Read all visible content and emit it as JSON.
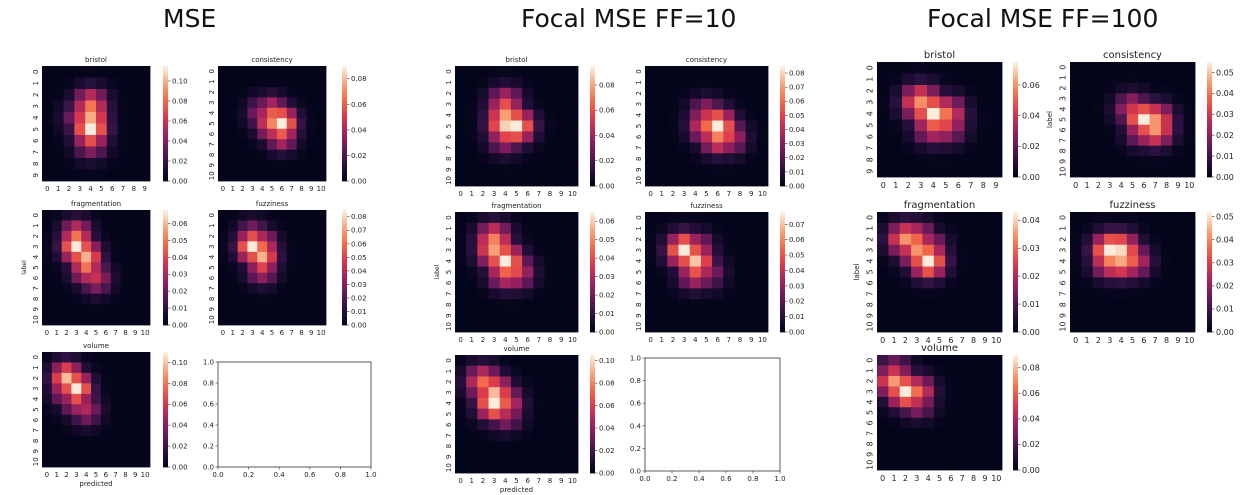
{
  "groups": [
    {
      "title": "MSE"
    },
    {
      "title": "Focal MSE FF=10"
    },
    {
      "title": "Focal MSE FF=100"
    }
  ],
  "axis_labels": {
    "ylabel": "label",
    "xlabel": "predicted"
  },
  "colormap": [
    "#03051a",
    "#2d1242",
    "#6b1a5a",
    "#a3245e",
    "#dc3a4c",
    "#f26b4a",
    "#f6a57a",
    "#faebdd"
  ],
  "chart_data": [
    {
      "type": "heatmap",
      "group": "MSE",
      "title": "bristol",
      "ylabel": "",
      "xlabel": "",
      "x": [
        0,
        1,
        2,
        3,
        4,
        5,
        6,
        7,
        8,
        9
      ],
      "y": [
        0,
        1,
        2,
        3,
        4,
        5,
        6,
        7,
        8,
        9
      ],
      "cbar_ticks": [
        "0.00",
        "0.02",
        "0.04",
        "0.06",
        "0.08",
        "0.10"
      ],
      "vmax": 0.115,
      "peaks": [
        {
          "x": 4,
          "y": 3,
          "v": 0.085
        },
        {
          "x": 4,
          "y": 4,
          "v": 0.1
        },
        {
          "x": 4,
          "y": 5,
          "v": 0.115
        },
        {
          "x": 3,
          "y": 4,
          "v": 0.05
        },
        {
          "x": 4,
          "y": 6,
          "v": 0.06
        }
      ]
    },
    {
      "type": "heatmap",
      "group": "MSE",
      "title": "consistency",
      "ylabel": "",
      "xlabel": "",
      "x": [
        0,
        1,
        2,
        3,
        4,
        5,
        6,
        7,
        8,
        9,
        10
      ],
      "y": [
        0,
        1,
        2,
        3,
        4,
        5,
        6,
        7,
        8,
        9,
        10
      ],
      "cbar_ticks": [
        "0.00",
        "0.02",
        "0.04",
        "0.06",
        "0.08"
      ],
      "vmax": 0.09,
      "peaks": [
        {
          "x": 6,
          "y": 5,
          "v": 0.09
        },
        {
          "x": 5,
          "y": 5,
          "v": 0.07
        },
        {
          "x": 5,
          "y": 4,
          "v": 0.06
        },
        {
          "x": 6,
          "y": 6,
          "v": 0.06
        },
        {
          "x": 4,
          "y": 4,
          "v": 0.04
        }
      ]
    },
    {
      "type": "heatmap",
      "group": "MSE",
      "title": "fragmentation",
      "ylabel": "label",
      "xlabel": "",
      "x": [
        0,
        1,
        2,
        3,
        4,
        5,
        6,
        7,
        8,
        9,
        10
      ],
      "y": [
        0,
        1,
        2,
        3,
        4,
        5,
        6,
        7,
        8,
        9,
        10
      ],
      "cbar_ticks": [
        "0.00",
        "0.01",
        "0.02",
        "0.03",
        "0.04",
        "0.05",
        "0.06"
      ],
      "vmax": 0.068,
      "peaks": [
        {
          "x": 3,
          "y": 3,
          "v": 0.068
        },
        {
          "x": 4,
          "y": 4,
          "v": 0.06
        },
        {
          "x": 3,
          "y": 2,
          "v": 0.05
        },
        {
          "x": 4,
          "y": 5,
          "v": 0.05
        },
        {
          "x": 5,
          "y": 6,
          "v": 0.035
        }
      ]
    },
    {
      "type": "heatmap",
      "group": "MSE",
      "title": "fuzziness",
      "ylabel": "",
      "xlabel": "",
      "x": [
        0,
        1,
        2,
        3,
        4,
        5,
        6,
        7,
        8,
        9,
        10
      ],
      "y": [
        0,
        1,
        2,
        3,
        4,
        5,
        6,
        7,
        8,
        9,
        10
      ],
      "cbar_ticks": [
        "0.00",
        "0.01",
        "0.02",
        "0.03",
        "0.04",
        "0.05",
        "0.06",
        "0.07",
        "0.08"
      ],
      "vmax": 0.085,
      "peaks": [
        {
          "x": 3,
          "y": 3,
          "v": 0.085
        },
        {
          "x": 4,
          "y": 4,
          "v": 0.075
        },
        {
          "x": 4,
          "y": 3,
          "v": 0.06
        },
        {
          "x": 4,
          "y": 5,
          "v": 0.05
        },
        {
          "x": 3,
          "y": 2,
          "v": 0.04
        }
      ]
    },
    {
      "type": "heatmap",
      "group": "MSE",
      "title": "volume",
      "ylabel": "",
      "xlabel": "predicted",
      "x": [
        0,
        1,
        2,
        3,
        4,
        5,
        6,
        7,
        8,
        9,
        10
      ],
      "y": [
        0,
        1,
        2,
        3,
        4,
        5,
        6,
        7,
        8,
        9,
        10
      ],
      "cbar_ticks": [
        "0.00",
        "0.02",
        "0.04",
        "0.06",
        "0.08",
        "0.10"
      ],
      "vmax": 0.11,
      "peaks": [
        {
          "x": 2,
          "y": 2,
          "v": 0.1
        },
        {
          "x": 3,
          "y": 3,
          "v": 0.11
        },
        {
          "x": 2,
          "y": 3,
          "v": 0.07
        },
        {
          "x": 3,
          "y": 4,
          "v": 0.07
        },
        {
          "x": 4,
          "y": 5,
          "v": 0.05
        }
      ]
    },
    {
      "type": "empty",
      "group": "MSE",
      "title": "",
      "x_ticks": [
        "0.0",
        "0.2",
        "0.4",
        "0.6",
        "0.8",
        "1.0"
      ],
      "y_ticks": [
        "0.0",
        "0.2",
        "0.4",
        "0.6",
        "0.8",
        "1.0"
      ]
    },
    {
      "type": "heatmap",
      "group": "Focal MSE FF=10",
      "title": "bristol",
      "ylabel": "",
      "xlabel": "",
      "x": [
        0,
        1,
        2,
        3,
        4,
        5,
        6,
        7,
        8,
        9,
        10
      ],
      "y": [
        0,
        1,
        2,
        3,
        4,
        5,
        6,
        7,
        8,
        9,
        10
      ],
      "cbar_ticks": [
        "0.00",
        "0.02",
        "0.04",
        "0.06",
        "0.08"
      ],
      "vmax": 0.095,
      "peaks": [
        {
          "x": 4,
          "y": 4,
          "v": 0.08
        },
        {
          "x": 4,
          "y": 5,
          "v": 0.09
        },
        {
          "x": 5,
          "y": 5,
          "v": 0.095
        },
        {
          "x": 4,
          "y": 3,
          "v": 0.06
        },
        {
          "x": 4,
          "y": 6,
          "v": 0.05
        }
      ]
    },
    {
      "type": "heatmap",
      "group": "Focal MSE FF=10",
      "title": "consistency",
      "ylabel": "",
      "xlabel": "",
      "x": [
        0,
        1,
        2,
        3,
        4,
        5,
        6,
        7,
        8,
        9,
        10
      ],
      "y": [
        0,
        1,
        2,
        3,
        4,
        5,
        6,
        7,
        8,
        9,
        10
      ],
      "cbar_ticks": [
        "0.00",
        "0.01",
        "0.02",
        "0.03",
        "0.04",
        "0.05",
        "0.06",
        "0.07",
        "0.08"
      ],
      "vmax": 0.085,
      "peaks": [
        {
          "x": 6,
          "y": 5,
          "v": 0.085
        },
        {
          "x": 5,
          "y": 5,
          "v": 0.06
        },
        {
          "x": 6,
          "y": 6,
          "v": 0.065
        },
        {
          "x": 7,
          "y": 6,
          "v": 0.05
        },
        {
          "x": 5,
          "y": 4,
          "v": 0.045
        }
      ]
    },
    {
      "type": "heatmap",
      "group": "Focal MSE FF=10",
      "title": "fragmentation",
      "ylabel": "label",
      "xlabel": "",
      "x": [
        0,
        1,
        2,
        3,
        4,
        5,
        6,
        7,
        8,
        9,
        10
      ],
      "y": [
        0,
        1,
        2,
        3,
        4,
        5,
        6,
        7,
        8,
        9,
        10
      ],
      "cbar_ticks": [
        "0.00",
        "0.01",
        "0.02",
        "0.03",
        "0.04",
        "0.05",
        "0.06"
      ],
      "vmax": 0.065,
      "peaks": [
        {
          "x": 3,
          "y": 3,
          "v": 0.055
        },
        {
          "x": 4,
          "y": 4,
          "v": 0.065
        },
        {
          "x": 3,
          "y": 2,
          "v": 0.05
        },
        {
          "x": 4,
          "y": 5,
          "v": 0.045
        },
        {
          "x": 5,
          "y": 5,
          "v": 0.04
        }
      ]
    },
    {
      "type": "heatmap",
      "group": "Focal MSE FF=10",
      "title": "fuzziness",
      "ylabel": "",
      "xlabel": "",
      "x": [
        0,
        1,
        2,
        3,
        4,
        5,
        6,
        7,
        8,
        9,
        10
      ],
      "y": [
        0,
        1,
        2,
        3,
        4,
        5,
        6,
        7,
        8,
        9,
        10
      ],
      "cbar_ticks": [
        "0.00",
        "0.01",
        "0.02",
        "0.03",
        "0.04",
        "0.05",
        "0.06",
        "0.07"
      ],
      "vmax": 0.078,
      "peaks": [
        {
          "x": 3,
          "y": 3,
          "v": 0.078
        },
        {
          "x": 4,
          "y": 4,
          "v": 0.072
        },
        {
          "x": 4,
          "y": 3,
          "v": 0.05
        },
        {
          "x": 4,
          "y": 5,
          "v": 0.05
        },
        {
          "x": 5,
          "y": 5,
          "v": 0.035
        }
      ]
    },
    {
      "type": "heatmap",
      "group": "Focal MSE FF=10",
      "title": "volume",
      "ylabel": "",
      "xlabel": "predicted",
      "x": [
        0,
        1,
        2,
        3,
        4,
        5,
        6,
        7,
        8,
        9,
        10
      ],
      "y": [
        0,
        1,
        2,
        3,
        4,
        5,
        6,
        7,
        8,
        9,
        10
      ],
      "cbar_ticks": [
        "0.00",
        "0.02",
        "0.04",
        "0.06",
        "0.08",
        "0.10"
      ],
      "vmax": 0.105,
      "peaks": [
        {
          "x": 2,
          "y": 2,
          "v": 0.075
        },
        {
          "x": 3,
          "y": 3,
          "v": 0.095
        },
        {
          "x": 3,
          "y": 4,
          "v": 0.105
        },
        {
          "x": 4,
          "y": 4,
          "v": 0.07
        },
        {
          "x": 4,
          "y": 5,
          "v": 0.05
        }
      ]
    },
    {
      "type": "empty",
      "group": "Focal MSE FF=10",
      "title": "",
      "x_ticks": [
        "0.0",
        "0.2",
        "0.4",
        "0.6",
        "0.8",
        "1.0"
      ],
      "y_ticks": [
        "0.0",
        "0.2",
        "0.4",
        "0.6",
        "0.8",
        "1.0"
      ]
    },
    {
      "type": "heatmap",
      "group": "Focal MSE FF=100",
      "title": "bristol",
      "ylabel": "",
      "xlabel": "",
      "x": [
        0,
        1,
        2,
        3,
        4,
        5,
        6,
        7,
        8,
        9
      ],
      "y": [
        0,
        1,
        2,
        3,
        4,
        5,
        6,
        7,
        8,
        9
      ],
      "cbar_ticks": [
        "0.00",
        "0.02",
        "0.04",
        "0.06"
      ],
      "vmax": 0.075,
      "peaks": [
        {
          "x": 4,
          "y": 4,
          "v": 0.075
        },
        {
          "x": 3,
          "y": 3,
          "v": 0.06
        },
        {
          "x": 5,
          "y": 4,
          "v": 0.055
        },
        {
          "x": 4,
          "y": 5,
          "v": 0.05
        },
        {
          "x": 5,
          "y": 5,
          "v": 0.045
        }
      ]
    },
    {
      "type": "heatmap",
      "group": "Focal MSE FF=100",
      "title": "consistency",
      "ylabel": "label",
      "xlabel": "",
      "x": [
        0,
        1,
        2,
        3,
        4,
        5,
        6,
        7,
        8,
        9,
        10
      ],
      "y": [
        0,
        1,
        2,
        3,
        4,
        5,
        6,
        7,
        8,
        9,
        10
      ],
      "cbar_ticks": [
        "0.00",
        "0.01",
        "0.02",
        "0.03",
        "0.04",
        "0.05"
      ],
      "vmax": 0.055,
      "peaks": [
        {
          "x": 6,
          "y": 5,
          "v": 0.055
        },
        {
          "x": 7,
          "y": 5,
          "v": 0.045
        },
        {
          "x": 7,
          "y": 6,
          "v": 0.045
        },
        {
          "x": 5,
          "y": 4,
          "v": 0.03
        },
        {
          "x": 6,
          "y": 6,
          "v": 0.035
        }
      ]
    },
    {
      "type": "heatmap",
      "group": "Focal MSE FF=100",
      "title": "fragmentation",
      "ylabel": "label",
      "xlabel": "",
      "x": [
        0,
        1,
        2,
        3,
        4,
        5,
        6,
        7,
        8,
        9,
        10
      ],
      "y": [
        0,
        1,
        2,
        3,
        4,
        5,
        6,
        7,
        8,
        9,
        10
      ],
      "cbar_ticks": [
        "0.00",
        "0.01",
        "0.02",
        "0.03",
        "0.04"
      ],
      "vmax": 0.043,
      "peaks": [
        {
          "x": 4,
          "y": 4,
          "v": 0.043
        },
        {
          "x": 2,
          "y": 2,
          "v": 0.035
        },
        {
          "x": 3,
          "y": 3,
          "v": 0.035
        },
        {
          "x": 3,
          "y": 2,
          "v": 0.03
        },
        {
          "x": 4,
          "y": 3,
          "v": 0.03
        }
      ]
    },
    {
      "type": "heatmap",
      "group": "Focal MSE FF=100",
      "title": "fuzziness",
      "ylabel": "",
      "xlabel": "",
      "x": [
        0,
        1,
        2,
        3,
        4,
        5,
        6,
        7,
        8,
        9,
        10
      ],
      "y": [
        0,
        1,
        2,
        3,
        4,
        5,
        6,
        7,
        8,
        9,
        10
      ],
      "cbar_ticks": [
        "0.00",
        "0.01",
        "0.02",
        "0.03",
        "0.04",
        "0.05"
      ],
      "vmax": 0.052,
      "peaks": [
        {
          "x": 3,
          "y": 3,
          "v": 0.052
        },
        {
          "x": 4,
          "y": 3,
          "v": 0.05
        },
        {
          "x": 4,
          "y": 4,
          "v": 0.045
        },
        {
          "x": 3,
          "y": 4,
          "v": 0.04
        },
        {
          "x": 5,
          "y": 4,
          "v": 0.035
        }
      ]
    },
    {
      "type": "heatmap",
      "group": "Focal MSE FF=100",
      "title": "volume",
      "ylabel": "",
      "xlabel": "",
      "x": [
        0,
        1,
        2,
        3,
        4,
        5,
        6,
        7,
        8,
        9,
        10
      ],
      "y": [
        0,
        1,
        2,
        3,
        4,
        5,
        6,
        7,
        8,
        9,
        10
      ],
      "cbar_ticks": [
        "0.00",
        "0.02",
        "0.04",
        "0.06",
        "0.08"
      ],
      "vmax": 0.09,
      "peaks": [
        {
          "x": 1,
          "y": 2,
          "v": 0.075
        },
        {
          "x": 2,
          "y": 3,
          "v": 0.09
        },
        {
          "x": 3,
          "y": 3,
          "v": 0.065
        },
        {
          "x": 1,
          "y": 1,
          "v": 0.04
        },
        {
          "x": 3,
          "y": 4,
          "v": 0.045
        }
      ]
    }
  ]
}
